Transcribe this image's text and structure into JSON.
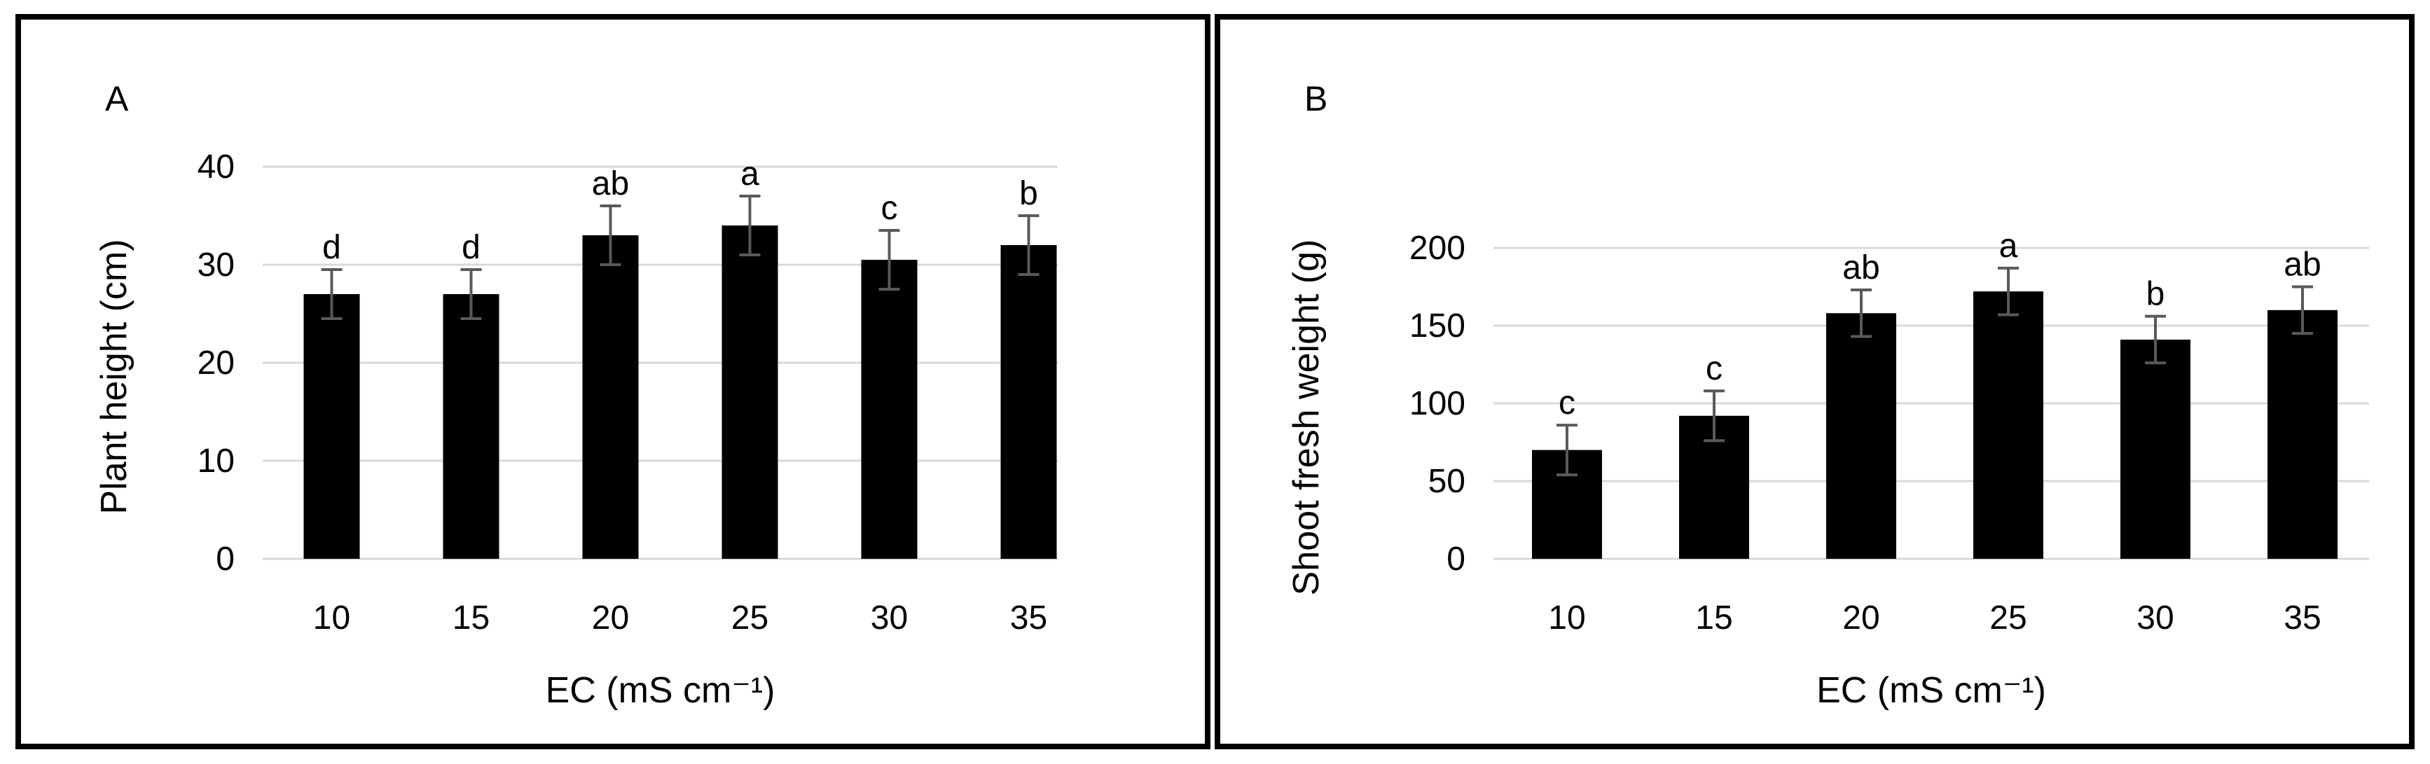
{
  "chart_data": [
    {
      "type": "bar",
      "panel_label": "A",
      "categories": [
        "10",
        "15",
        "20",
        "25",
        "30",
        "35"
      ],
      "values": [
        27,
        27,
        33,
        34,
        30.5,
        32
      ],
      "error": [
        2.5,
        2.5,
        3,
        3,
        3,
        3
      ],
      "letters": [
        "d",
        "d",
        "ab",
        "a",
        "c",
        "b"
      ],
      "xlabel": "EC (mS cm⁻¹)",
      "ylabel": "Plant height (cm)",
      "ylim": [
        0,
        40
      ],
      "yticks": [
        "0",
        "10",
        "20",
        "30",
        "40"
      ],
      "grid": true,
      "bar_color": "#000000"
    },
    {
      "type": "bar",
      "panel_label": "B",
      "categories": [
        "10",
        "15",
        "20",
        "25",
        "30",
        "35"
      ],
      "values": [
        70,
        92,
        158,
        172,
        141,
        160
      ],
      "error": [
        16,
        16,
        15,
        15,
        15,
        15
      ],
      "letters": [
        "c",
        "c",
        "ab",
        "a",
        "b",
        "ab"
      ],
      "xlabel": "EC (mS cm⁻¹)",
      "ylabel": "Shoot fresh weight  (g)",
      "ylim": [
        0,
        200
      ],
      "yticks": [
        "0",
        "50",
        "100",
        "150",
        "200"
      ],
      "grid": true,
      "bar_color": "#000000"
    }
  ]
}
